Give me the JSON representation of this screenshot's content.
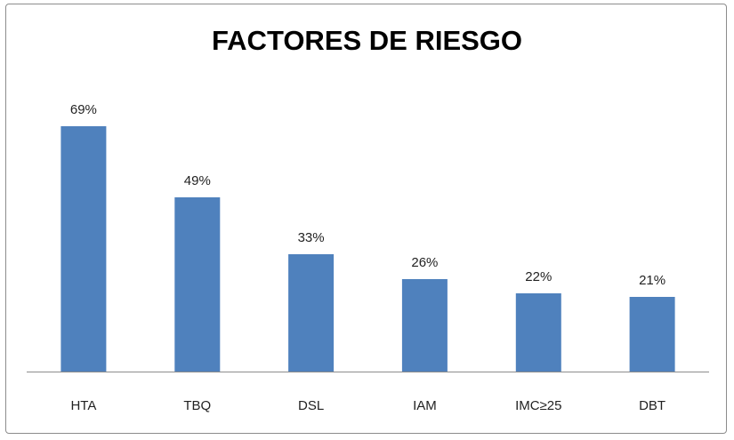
{
  "chart_data": {
    "type": "bar",
    "title": "FACTORES DE RIESGO",
    "categories": [
      "HTA",
      "TBQ",
      "DSL",
      "IAM",
      "IMC≥25",
      "DBT"
    ],
    "values": [
      69,
      49,
      33,
      26,
      22,
      21
    ],
    "data_labels": [
      "69%",
      "49%",
      "33%",
      "26%",
      "22%",
      "21%"
    ],
    "unit": "%",
    "xlabel": "",
    "ylabel": "",
    "ylim": [
      0,
      70
    ],
    "grid": false,
    "legend": "none",
    "bar_color": "#4f81bd",
    "axis_color": "#8c8c8c"
  }
}
